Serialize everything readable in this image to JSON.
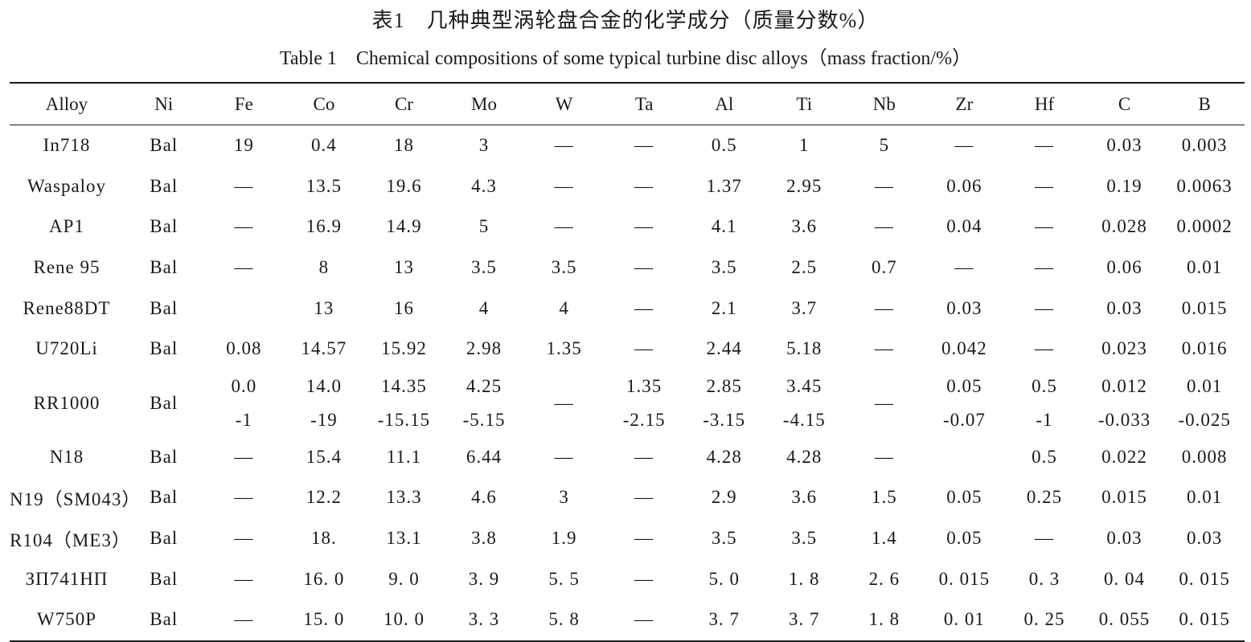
{
  "caption": {
    "cn": "表1　几种典型涡轮盘合金的化学成分（质量分数%）",
    "en": "Table 1　Chemical compositions of some typical turbine disc alloys（mass fraction/%）"
  },
  "table": {
    "headers": [
      "Alloy",
      "Ni",
      "Fe",
      "Co",
      "Cr",
      "Mo",
      "W",
      "Ta",
      "Al",
      "Ti",
      "Nb",
      "Zr",
      "Hf",
      "C",
      "B"
    ],
    "rows": [
      [
        "In718",
        "Bal",
        "19",
        "0.4",
        "18",
        "3",
        "—",
        "—",
        "0.5",
        "1",
        "5",
        "—",
        "—",
        "0.03",
        "0.003"
      ],
      [
        "Waspaloy",
        "Bal",
        "—",
        "13.5",
        "19.6",
        "4.3",
        "—",
        "—",
        "1.37",
        "2.95",
        "—",
        "0.06",
        "—",
        "0.19",
        "0.0063"
      ],
      [
        "AP1",
        "Bal",
        "—",
        "16.9",
        "14.9",
        "5",
        "—",
        "—",
        "4.1",
        "3.6",
        "—",
        "0.04",
        "—",
        "0.028",
        "0.0002"
      ],
      [
        "Rene 95",
        "Bal",
        "—",
        "8",
        "13",
        "3.5",
        "3.5",
        "—",
        "3.5",
        "2.5",
        "0.7",
        "—",
        "—",
        "0.06",
        "0.01"
      ],
      [
        "Rene88DT",
        "Bal",
        "",
        "13",
        "16",
        "4",
        "4",
        "—",
        "2.1",
        "3.7",
        "—",
        "0.03",
        "—",
        "0.03",
        "0.015"
      ],
      [
        "U720Li",
        "Bal",
        "0.08",
        "14.57",
        "15.92",
        "2.98",
        "1.35",
        "—",
        "2.44",
        "5.18",
        "—",
        "0.042",
        "—",
        "0.023",
        "0.016"
      ],
      [
        "RR1000",
        "Bal",
        "0.0|-1",
        "14.0|-19",
        "14.35|-15.15",
        "4.25|-5.15",
        "—",
        "1.35|-2.15",
        "2.85|-3.15",
        "3.45|-4.15",
        "—",
        "0.05|-0.07",
        "0.5|-1",
        "0.012|-0.033",
        "0.01|-0.025"
      ],
      [
        "N18",
        "Bal",
        "—",
        "15.4",
        "11.1",
        "6.44",
        "—",
        "—",
        "4.28",
        "4.28",
        "—",
        "",
        "0.5",
        "0.022",
        "0.008"
      ],
      [
        "N19（SM043）",
        "Bal",
        "—",
        "12.2",
        "13.3",
        "4.6",
        "3",
        "—",
        "2.9",
        "3.6",
        "1.5",
        "0.05",
        "0.25",
        "0.015",
        "0.01"
      ],
      [
        "R104（ME3）",
        "Bal",
        "—",
        "18.",
        "13.1",
        "3.8",
        "1.9",
        "—",
        "3.5",
        "3.5",
        "1.4",
        "0.05",
        "—",
        "0.03",
        "0.03"
      ],
      [
        "ЗП741НП",
        "Bal",
        "—",
        "16. 0",
        "9. 0",
        "3. 9",
        "5. 5",
        "—",
        "5. 0",
        "1. 8",
        "2. 6",
        "0. 015",
        "0. 3",
        "0. 04",
        "0. 015"
      ],
      [
        "W750P",
        "Bal",
        "—",
        "15. 0",
        "10. 0",
        "3. 3",
        "5. 8",
        "—",
        "3. 7",
        "3. 7",
        "1. 8",
        "0. 01",
        "0. 25",
        "0. 055",
        "0. 015"
      ]
    ]
  }
}
